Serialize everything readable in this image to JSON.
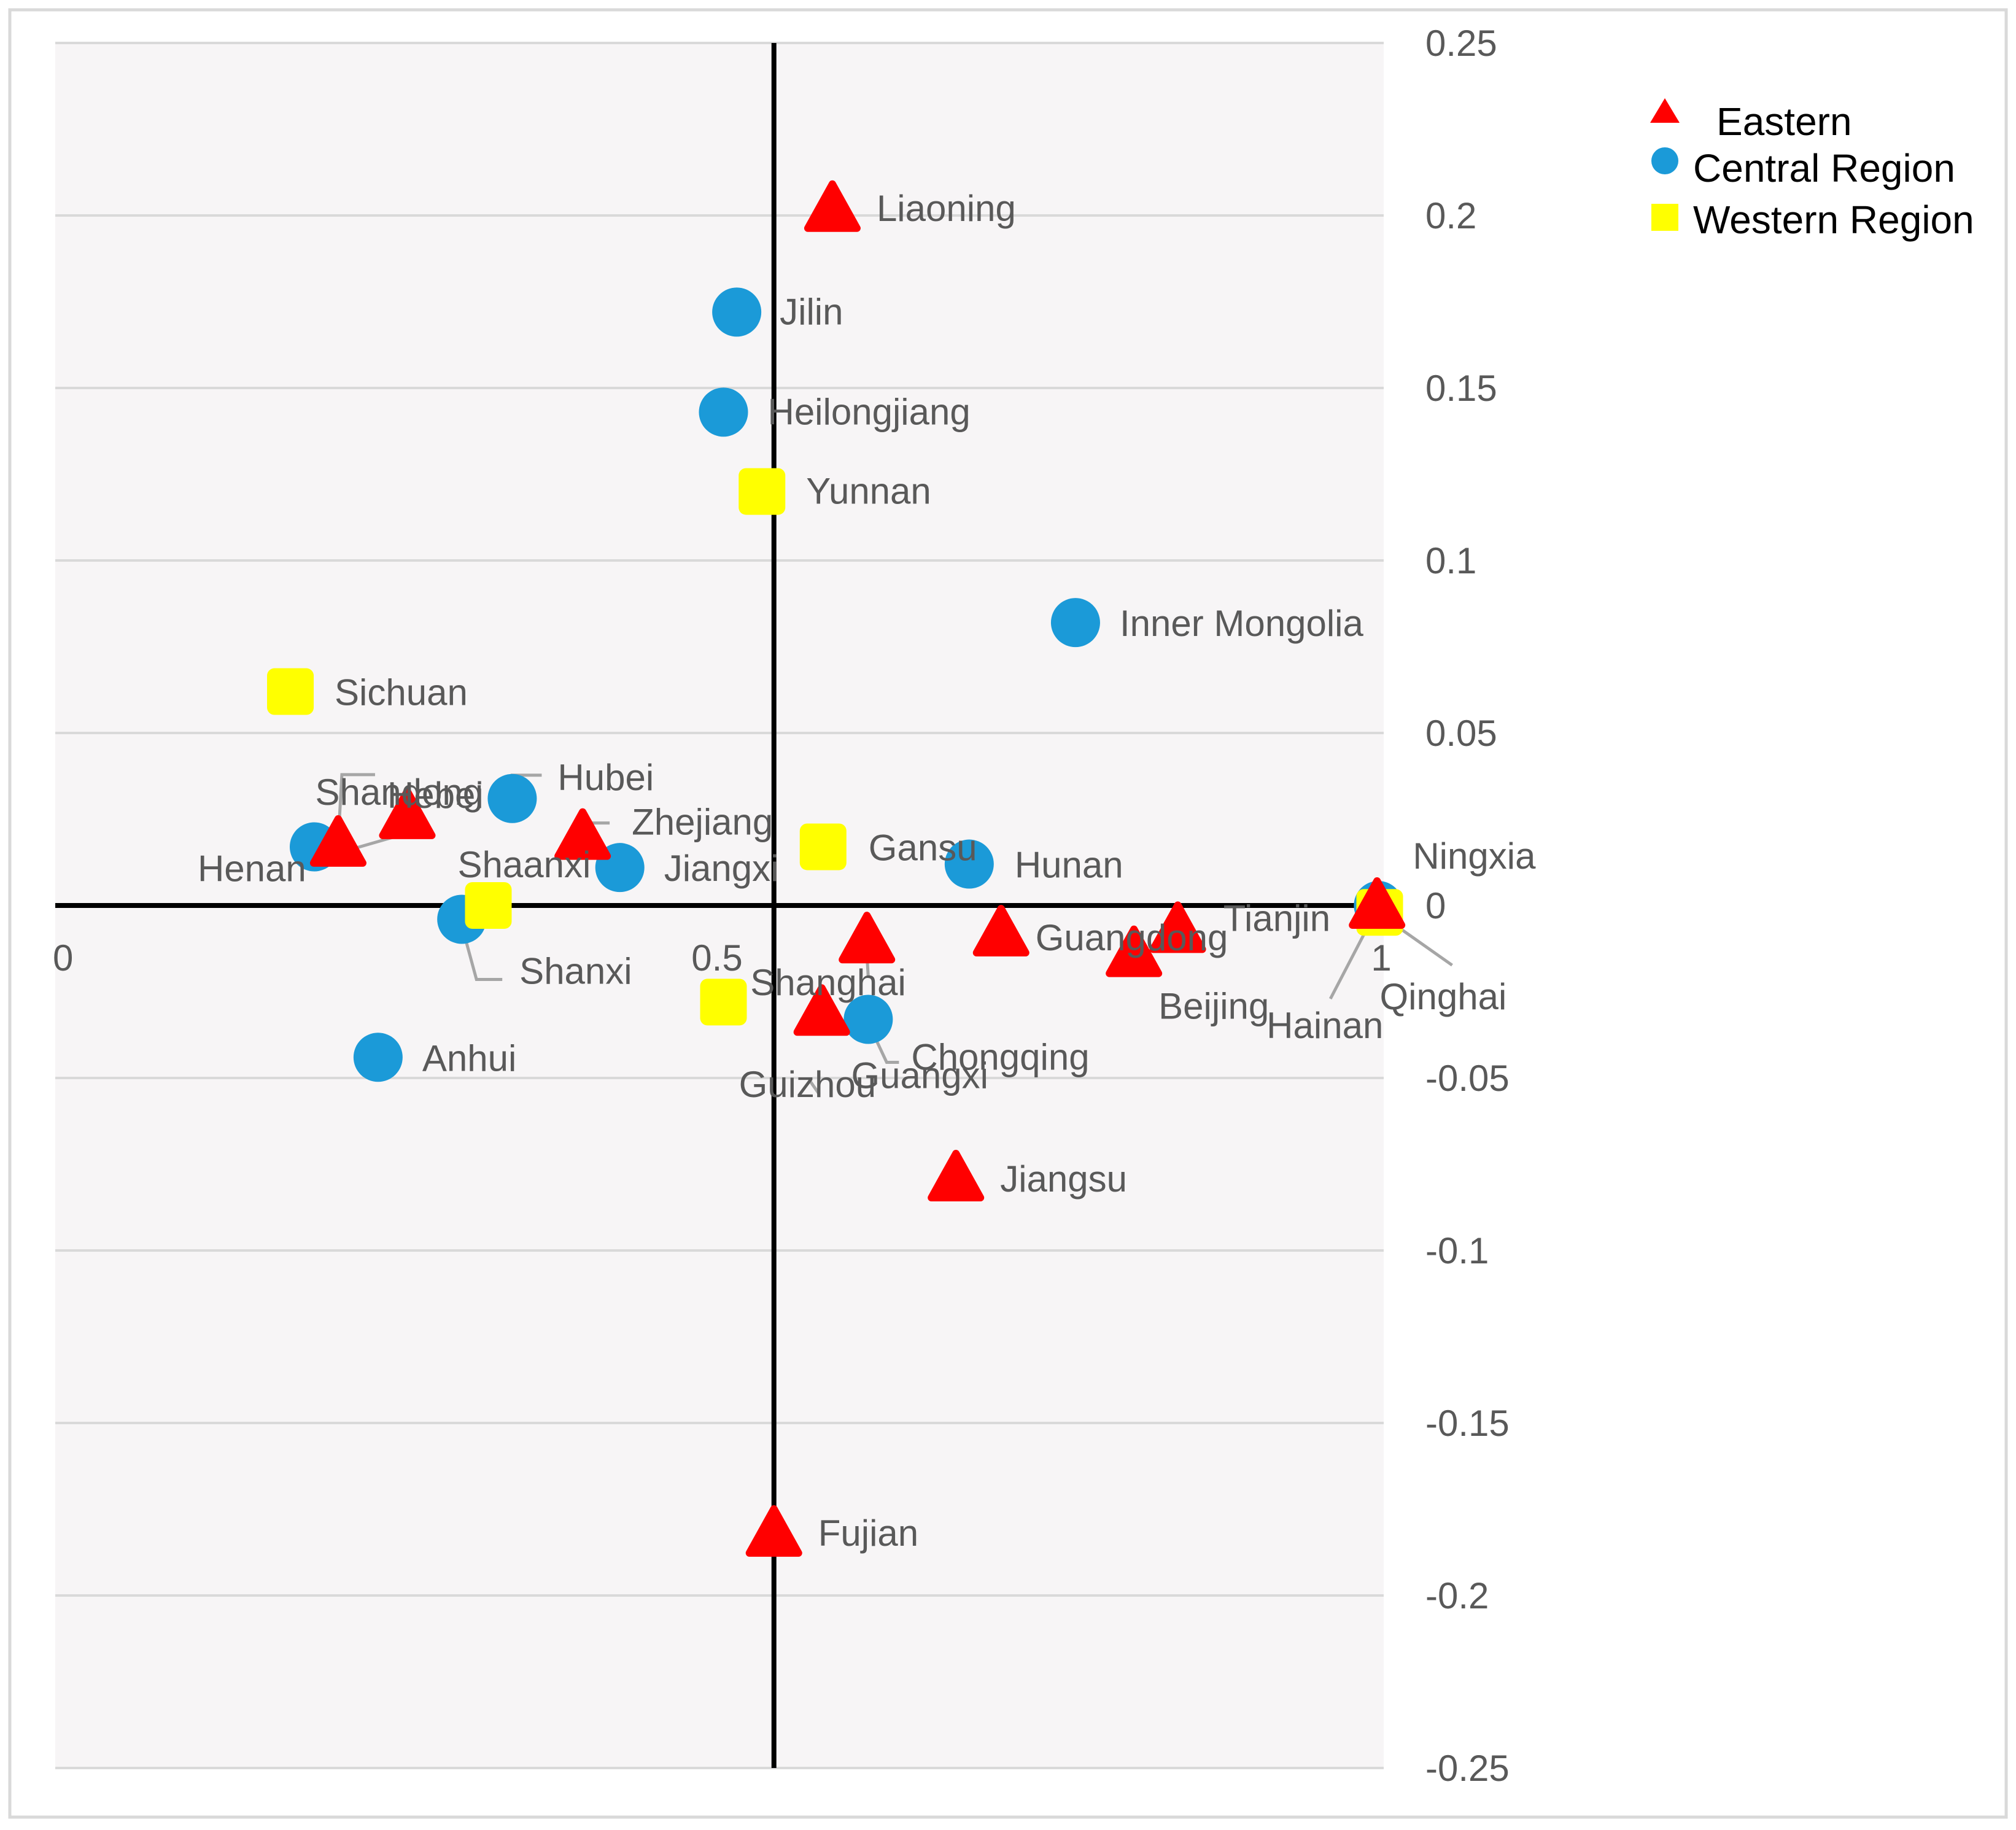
{
  "chart_data": {
    "type": "scatter",
    "title": "",
    "xlabel": "",
    "ylabel": "",
    "xlim": [
      0,
      1
    ],
    "ylim": [
      -0.25,
      0.25
    ],
    "x_ticks": [
      {
        "value": 0,
        "label": "0"
      },
      {
        "value": 0.5,
        "label": "0.5"
      },
      {
        "value": 1,
        "label": "1"
      }
    ],
    "y_ticks": [
      {
        "value": 0.25,
        "label": "0.25"
      },
      {
        "value": 0.2,
        "label": "0.2"
      },
      {
        "value": 0.15,
        "label": "0.15"
      },
      {
        "value": 0.1,
        "label": "0.1"
      },
      {
        "value": 0.05,
        "label": "0.05"
      },
      {
        "value": 0,
        "label": "0"
      },
      {
        "value": -0.05,
        "label": "-0.05"
      },
      {
        "value": -0.1,
        "label": "-0.1"
      },
      {
        "value": -0.15,
        "label": "-0.15"
      },
      {
        "value": -0.2,
        "label": "-0.2"
      },
      {
        "value": -0.25,
        "label": "-0.25"
      }
    ],
    "quadrant_lines": {
      "x": 0.541,
      "y": 0
    },
    "grid": "horizontal",
    "legend_position": "top-right",
    "series": [
      {
        "name": "Eastern",
        "marker": "triangle",
        "color": "#ff0000",
        "points": [
          {
            "label": "Liaoning",
            "x": 0.585,
            "y": 0.202
          },
          {
            "label": "Shandong",
            "x": 0.265,
            "y": 0.026
          },
          {
            "label": "Hebei",
            "x": 0.213,
            "y": 0.018
          },
          {
            "label": "Zhejiang",
            "x": 0.397,
            "y": 0.02
          },
          {
            "label": "Shanghai",
            "x": 0.611,
            "y": -0.01
          },
          {
            "label": "Guangdong",
            "x": 0.712,
            "y": -0.008
          },
          {
            "label": "Beijing",
            "x": 0.812,
            "y": -0.014
          },
          {
            "label": "Tianjin",
            "x": 0.845,
            "y": -0.007
          },
          {
            "label": "Hainan",
            "x": 0.995,
            "y": 0.0
          },
          {
            "label": "Guizhou",
            "x": 0.577,
            "y": -0.031
          },
          {
            "label": "Jiangsu",
            "x": 0.678,
            "y": -0.079
          },
          {
            "label": "Fujian",
            "x": 0.541,
            "y": -0.182
          }
        ]
      },
      {
        "name": "Central Region",
        "marker": "circle",
        "color": "#1b9ad8",
        "points": [
          {
            "label": "Jilin",
            "x": 0.513,
            "y": 0.172
          },
          {
            "label": "Heilongjiang",
            "x": 0.503,
            "y": 0.143
          },
          {
            "label": "Inner Mongolia",
            "x": 0.768,
            "y": 0.082
          },
          {
            "label": "Hubei",
            "x": 0.344,
            "y": 0.031
          },
          {
            "label": "Henan",
            "x": 0.195,
            "y": 0.017
          },
          {
            "label": "Jiangxi",
            "x": 0.425,
            "y": 0.011
          },
          {
            "label": "Hunan",
            "x": 0.688,
            "y": 0.012
          },
          {
            "label": "Shanxi",
            "x": 0.306,
            "y": -0.004
          },
          {
            "label": "Anhui",
            "x": 0.243,
            "y": -0.044
          },
          {
            "label": "Chongqing",
            "x": 0.612,
            "y": -0.033
          },
          {
            "label": "Ningxia",
            "x": 0.996,
            "y": 0.0
          }
        ]
      },
      {
        "name": "Western Region",
        "marker": "square",
        "color": "#ffff00",
        "points": [
          {
            "label": "Yunnan",
            "x": 0.532,
            "y": 0.12
          },
          {
            "label": "Sichuan",
            "x": 0.177,
            "y": 0.062
          },
          {
            "label": "Gansu",
            "x": 0.578,
            "y": 0.017
          },
          {
            "label": "Shaanxi",
            "x": 0.326,
            "y": 0.0
          },
          {
            "label": "Guangxi",
            "x": 0.503,
            "y": -0.028
          },
          {
            "label": "Qinghai",
            "x": 0.997,
            "y": -0.002
          }
        ]
      }
    ]
  }
}
